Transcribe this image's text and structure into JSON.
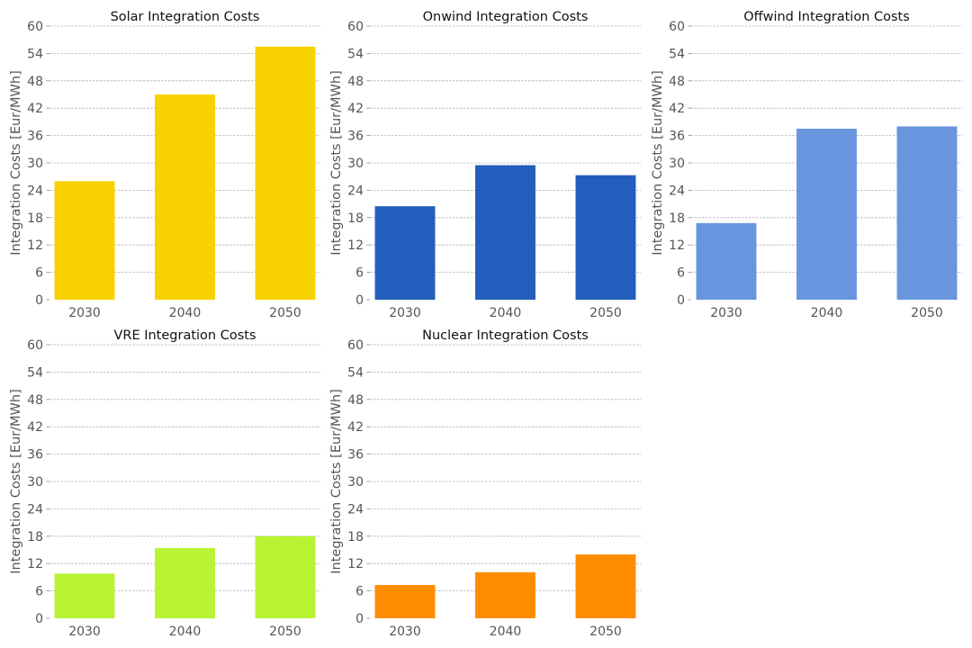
{
  "chart_data": [
    {
      "type": "bar",
      "title": "Solar Integration Costs",
      "ylabel": "Integration Costs [Eur/MWh]",
      "xlabel": "",
      "categories": [
        "2030",
        "2040",
        "2050"
      ],
      "values": [
        26,
        45,
        55.5
      ],
      "ylim": [
        0,
        60
      ],
      "yticks": [
        "0",
        "6",
        "12",
        "18",
        "24",
        "30",
        "36",
        "42",
        "48",
        "54",
        "60"
      ],
      "grid": true,
      "color": "#F8D200"
    },
    {
      "type": "bar",
      "title": "Onwind Integration Costs",
      "ylabel": "Integration Costs [Eur/MWh]",
      "xlabel": "",
      "categories": [
        "2030",
        "2040",
        "2050"
      ],
      "values": [
        20.5,
        29.5,
        27.3
      ],
      "ylim": [
        0,
        60
      ],
      "yticks": [
        "0",
        "6",
        "12",
        "18",
        "24",
        "30",
        "36",
        "42",
        "48",
        "54",
        "60"
      ],
      "grid": true,
      "color": "#235EBC"
    },
    {
      "type": "bar",
      "title": "Offwind Integration Costs",
      "ylabel": "Integration Costs [Eur/MWh]",
      "xlabel": "",
      "categories": [
        "2030",
        "2040",
        "2050"
      ],
      "values": [
        16.8,
        37.5,
        38
      ],
      "ylim": [
        0,
        60
      ],
      "yticks": [
        "0",
        "6",
        "12",
        "18",
        "24",
        "30",
        "36",
        "42",
        "48",
        "54",
        "60"
      ],
      "grid": true,
      "color": "#6895DD"
    },
    {
      "type": "bar",
      "title": "VRE Integration Costs",
      "ylabel": "Integration Costs [Eur/MWh]",
      "xlabel": "",
      "categories": [
        "2030",
        "2040",
        "2050"
      ],
      "values": [
        9.8,
        15.4,
        18
      ],
      "ylim": [
        0,
        60
      ],
      "yticks": [
        "0",
        "6",
        "12",
        "18",
        "24",
        "30",
        "36",
        "42",
        "48",
        "54",
        "60"
      ],
      "grid": true,
      "color": "#B9F434"
    },
    {
      "type": "bar",
      "title": "Nuclear Integration Costs",
      "ylabel": "Integration Costs [Eur/MWh]",
      "xlabel": "",
      "categories": [
        "2030",
        "2040",
        "2050"
      ],
      "values": [
        7.3,
        10.1,
        14
      ],
      "ylim": [
        0,
        60
      ],
      "yticks": [
        "0",
        "6",
        "12",
        "18",
        "24",
        "30",
        "36",
        "42",
        "48",
        "54",
        "60"
      ],
      "grid": true,
      "color": "#FF8C00"
    }
  ]
}
